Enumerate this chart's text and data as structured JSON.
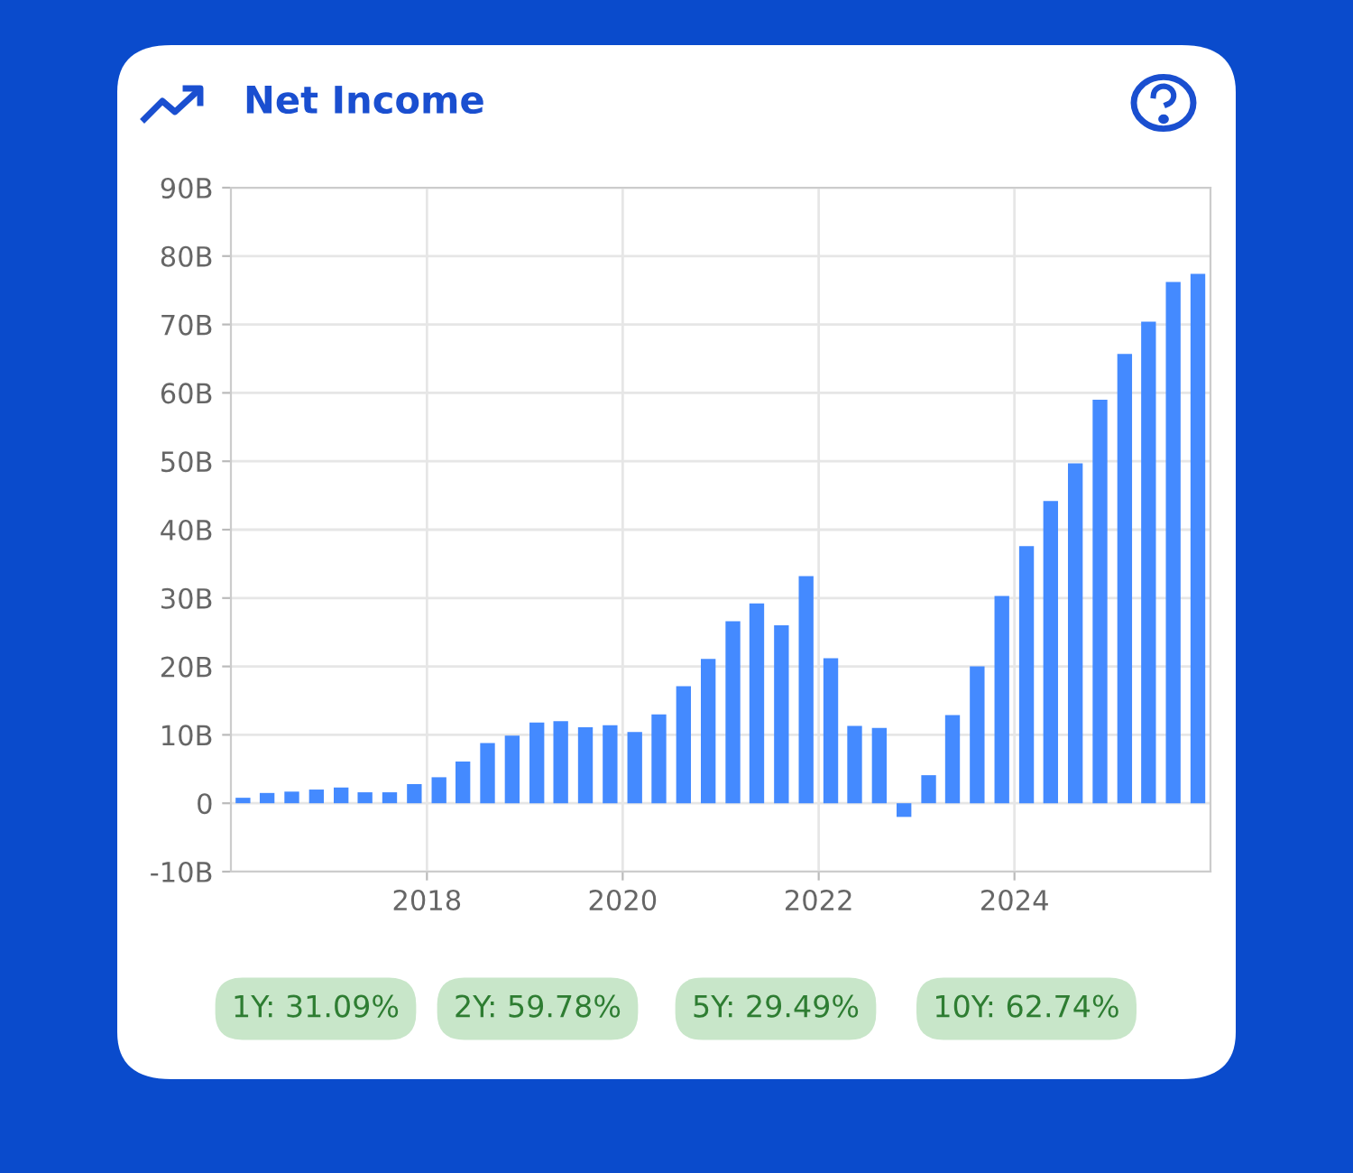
{
  "chart_data": {
    "type": "bar",
    "title": "Net Income",
    "x": [
      "2016-02-15",
      "2016-05-15",
      "2016-08-15",
      "2016-11-15",
      "2017-02-15",
      "2017-05-15",
      "2017-08-15",
      "2017-11-15",
      "2018-02-15",
      "2018-05-15",
      "2018-08-15",
      "2018-11-15",
      "2019-02-15",
      "2019-05-15",
      "2019-08-15",
      "2019-11-15",
      "2020-02-15",
      "2020-05-15",
      "2020-08-15",
      "2020-11-15",
      "2021-02-15",
      "2021-05-15",
      "2021-08-15",
      "2021-11-15",
      "2022-02-15",
      "2022-05-15",
      "2022-08-15",
      "2022-11-15",
      "2023-02-15",
      "2023-05-15",
      "2023-08-15",
      "2023-11-15",
      "2024-02-15",
      "2024-05-15",
      "2024-08-15",
      "2024-11-15",
      "2025-02-15",
      "2025-05-15",
      "2025-08-15",
      "2025-11-15"
    ],
    "values": [
      0.8,
      1.5,
      1.7,
      2.0,
      2.3,
      1.6,
      1.6,
      2.8,
      3.8,
      6.1,
      8.8,
      9.9,
      11.8,
      12.0,
      11.1,
      11.4,
      10.4,
      13.0,
      17.1,
      21.1,
      26.6,
      29.2,
      26.0,
      33.2,
      21.2,
      11.3,
      11.0,
      -2.0,
      4.1,
      12.9,
      20.0,
      30.3,
      37.6,
      44.2,
      49.7,
      59.0,
      65.7,
      70.4,
      76.2,
      77.4
    ],
    "color": "#448aff",
    "xlim": [
      "2016-01-01",
      "2026-01-01"
    ],
    "xticks": [
      "2018",
      "2020",
      "2022",
      "2024"
    ],
    "ylim": [
      -10,
      90
    ],
    "yticks": [
      {
        "value": -10,
        "label": "-10B"
      },
      0,
      {
        "value": 10,
        "label": "10B"
      },
      {
        "value": 20,
        "label": "20B"
      },
      {
        "value": 30,
        "label": "30B"
      },
      {
        "value": 40,
        "label": "40B"
      },
      {
        "value": 50,
        "label": "50B"
      },
      {
        "value": 60,
        "label": "60B"
      },
      {
        "value": 70,
        "label": "70B"
      },
      {
        "value": 80,
        "label": "80B"
      },
      {
        "value": 90,
        "label": "90B"
      }
    ],
    "grid": true,
    "annotations": [
      "1Y: 31.09%",
      "2Y: 59.78%",
      "5Y: 29.49%",
      "10Y: 62.74%"
    ]
  }
}
